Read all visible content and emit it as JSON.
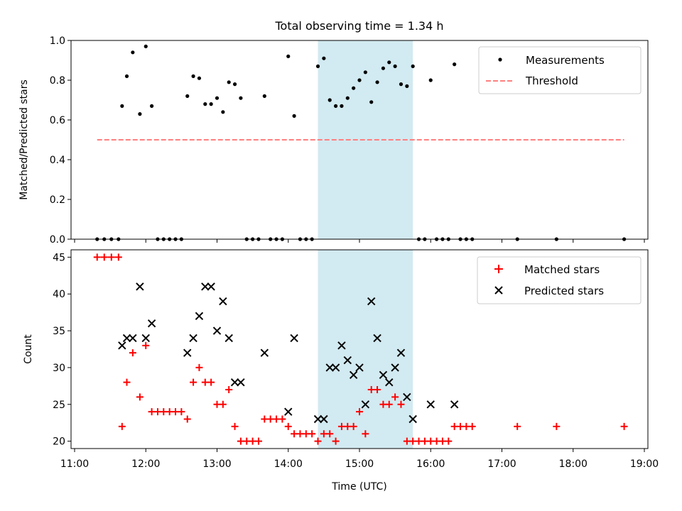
{
  "chart_data": [
    {
      "type": "scatter",
      "title": "Total observing time = 1.34 h",
      "ylabel": "Matched/Predicted stars",
      "xlim": [
        "11:00",
        "19:00"
      ],
      "ylim": [
        0,
        1.0
      ],
      "yticks": [
        "0.0",
        "0.2",
        "0.4",
        "0.6",
        "0.8",
        "1.0"
      ],
      "legend": {
        "placement": "top-right",
        "entries": [
          "Measurements",
          "Threshold"
        ]
      },
      "shaded_interval": [
        "14:25",
        "15:45"
      ],
      "series": [
        {
          "name": "Measurements",
          "marker": "dot",
          "color": "#000000",
          "points": [
            [
              "11:19",
              0.0
            ],
            [
              "11:25",
              0.0
            ],
            [
              "11:31",
              0.0
            ],
            [
              "11:37",
              0.0
            ],
            [
              "11:40",
              0.67
            ],
            [
              "11:44",
              0.82
            ],
            [
              "11:49",
              0.94
            ],
            [
              "11:55",
              0.63
            ],
            [
              "12:00",
              0.97
            ],
            [
              "12:05",
              0.67
            ],
            [
              "12:10",
              0.0
            ],
            [
              "12:15",
              0.0
            ],
            [
              "12:20",
              0.0
            ],
            [
              "12:25",
              0.0
            ],
            [
              "12:30",
              0.0
            ],
            [
              "12:35",
              0.72
            ],
            [
              "12:40",
              0.82
            ],
            [
              "12:45",
              0.81
            ],
            [
              "12:50",
              0.68
            ],
            [
              "12:55",
              0.68
            ],
            [
              "13:00",
              0.71
            ],
            [
              "13:05",
              0.64
            ],
            [
              "13:10",
              0.79
            ],
            [
              "13:15",
              0.78
            ],
            [
              "13:20",
              0.71
            ],
            [
              "13:25",
              0.0
            ],
            [
              "13:30",
              0.0
            ],
            [
              "13:35",
              0.0
            ],
            [
              "13:40",
              0.72
            ],
            [
              "13:45",
              0.0
            ],
            [
              "13:50",
              0.0
            ],
            [
              "13:55",
              0.0
            ],
            [
              "14:00",
              0.92
            ],
            [
              "14:05",
              0.62
            ],
            [
              "14:10",
              0.0
            ],
            [
              "14:15",
              0.0
            ],
            [
              "14:20",
              0.0
            ],
            [
              "14:25",
              0.87
            ],
            [
              "14:30",
              0.91
            ],
            [
              "14:35",
              0.7
            ],
            [
              "14:40",
              0.67
            ],
            [
              "14:45",
              0.67
            ],
            [
              "14:50",
              0.71
            ],
            [
              "14:55",
              0.76
            ],
            [
              "15:00",
              0.8
            ],
            [
              "15:05",
              0.84
            ],
            [
              "15:10",
              0.69
            ],
            [
              "15:15",
              0.79
            ],
            [
              "15:20",
              0.86
            ],
            [
              "15:25",
              0.89
            ],
            [
              "15:30",
              0.87
            ],
            [
              "15:35",
              0.78
            ],
            [
              "15:40",
              0.77
            ],
            [
              "15:45",
              0.87
            ],
            [
              "15:50",
              0.0
            ],
            [
              "15:55",
              0.0
            ],
            [
              "16:00",
              0.8
            ],
            [
              "16:05",
              0.0
            ],
            [
              "16:10",
              0.0
            ],
            [
              "16:15",
              0.0
            ],
            [
              "16:20",
              0.88
            ],
            [
              "16:25",
              0.0
            ],
            [
              "16:30",
              0.0
            ],
            [
              "16:35",
              0.0
            ],
            [
              "17:13",
              0.0
            ],
            [
              "17:46",
              0.0
            ],
            [
              "18:43",
              0.0
            ]
          ]
        },
        {
          "name": "Threshold",
          "line": "dashed",
          "color": "#ff7f7f",
          "points": [
            [
              "11:19",
              0.5
            ],
            [
              "18:43",
              0.5
            ]
          ]
        }
      ]
    },
    {
      "type": "scatter",
      "xlabel": "Time (UTC)",
      "ylabel": "Count",
      "xlim": [
        "11:00",
        "19:00"
      ],
      "xticks": [
        "11:00",
        "12:00",
        "13:00",
        "14:00",
        "15:00",
        "16:00",
        "17:00",
        "18:00",
        "19:00"
      ],
      "ylim": [
        19,
        46
      ],
      "yticks": [
        "20",
        "25",
        "30",
        "35",
        "40",
        "45"
      ],
      "legend": {
        "placement": "top-right",
        "entries": [
          "Matched stars",
          "Predicted stars"
        ]
      },
      "shaded_interval": [
        "14:25",
        "15:45"
      ],
      "series": [
        {
          "name": "Matched stars",
          "marker": "plus",
          "color": "#ff0000",
          "points": [
            [
              "11:19",
              45
            ],
            [
              "11:25",
              45
            ],
            [
              "11:31",
              45
            ],
            [
              "11:37",
              45
            ],
            [
              "11:40",
              22
            ],
            [
              "11:44",
              28
            ],
            [
              "11:49",
              32
            ],
            [
              "11:55",
              26
            ],
            [
              "12:00",
              33
            ],
            [
              "12:05",
              24
            ],
            [
              "12:10",
              24
            ],
            [
              "12:15",
              24
            ],
            [
              "12:20",
              24
            ],
            [
              "12:25",
              24
            ],
            [
              "12:30",
              24
            ],
            [
              "12:35",
              23
            ],
            [
              "12:40",
              28
            ],
            [
              "12:45",
              30
            ],
            [
              "12:50",
              28
            ],
            [
              "12:55",
              28
            ],
            [
              "13:00",
              25
            ],
            [
              "13:05",
              25
            ],
            [
              "13:10",
              27
            ],
            [
              "13:15",
              22
            ],
            [
              "13:20",
              20
            ],
            [
              "13:25",
              20
            ],
            [
              "13:30",
              20
            ],
            [
              "13:35",
              20
            ],
            [
              "13:40",
              23
            ],
            [
              "13:45",
              23
            ],
            [
              "13:50",
              23
            ],
            [
              "13:55",
              23
            ],
            [
              "14:00",
              22
            ],
            [
              "14:05",
              21
            ],
            [
              "14:10",
              21
            ],
            [
              "14:15",
              21
            ],
            [
              "14:20",
              21
            ],
            [
              "14:25",
              20
            ],
            [
              "14:30",
              21
            ],
            [
              "14:35",
              21
            ],
            [
              "14:40",
              20
            ],
            [
              "14:45",
              22
            ],
            [
              "14:50",
              22
            ],
            [
              "14:55",
              22
            ],
            [
              "15:00",
              24
            ],
            [
              "15:05",
              21
            ],
            [
              "15:10",
              27
            ],
            [
              "15:15",
              27
            ],
            [
              "15:20",
              25
            ],
            [
              "15:25",
              25
            ],
            [
              "15:30",
              26
            ],
            [
              "15:35",
              25
            ],
            [
              "15:40",
              20
            ],
            [
              "15:45",
              20
            ],
            [
              "15:50",
              20
            ],
            [
              "15:55",
              20
            ],
            [
              "16:00",
              20
            ],
            [
              "16:05",
              20
            ],
            [
              "16:10",
              20
            ],
            [
              "16:15",
              20
            ],
            [
              "16:20",
              22
            ],
            [
              "16:25",
              22
            ],
            [
              "16:30",
              22
            ],
            [
              "16:35",
              22
            ],
            [
              "17:13",
              22
            ],
            [
              "17:46",
              22
            ],
            [
              "18:43",
              22
            ]
          ]
        },
        {
          "name": "Predicted stars",
          "marker": "x",
          "color": "#000000",
          "points": [
            [
              "11:40",
              33
            ],
            [
              "11:44",
              34
            ],
            [
              "11:49",
              34
            ],
            [
              "11:55",
              41
            ],
            [
              "12:00",
              34
            ],
            [
              "12:05",
              36
            ],
            [
              "12:35",
              32
            ],
            [
              "12:40",
              34
            ],
            [
              "12:45",
              37
            ],
            [
              "12:50",
              41
            ],
            [
              "12:55",
              41
            ],
            [
              "13:00",
              35
            ],
            [
              "13:05",
              39
            ],
            [
              "13:10",
              34
            ],
            [
              "13:15",
              28
            ],
            [
              "13:20",
              28
            ],
            [
              "13:40",
              32
            ],
            [
              "14:00",
              24
            ],
            [
              "14:05",
              34
            ],
            [
              "14:25",
              23
            ],
            [
              "14:30",
              23
            ],
            [
              "14:35",
              30
            ],
            [
              "14:40",
              30
            ],
            [
              "14:45",
              33
            ],
            [
              "14:50",
              31
            ],
            [
              "14:55",
              29
            ],
            [
              "15:00",
              30
            ],
            [
              "15:05",
              25
            ],
            [
              "15:10",
              39
            ],
            [
              "15:15",
              34
            ],
            [
              "15:20",
              29
            ],
            [
              "15:25",
              28
            ],
            [
              "15:30",
              30
            ],
            [
              "15:35",
              32
            ],
            [
              "15:40",
              26
            ],
            [
              "15:45",
              23
            ],
            [
              "16:00",
              25
            ],
            [
              "16:20",
              25
            ]
          ]
        }
      ]
    }
  ],
  "colors": {
    "shade": "#add8e6",
    "threshold": "#ff7f7f",
    "matched": "#ff0000",
    "predicted": "#000000"
  }
}
